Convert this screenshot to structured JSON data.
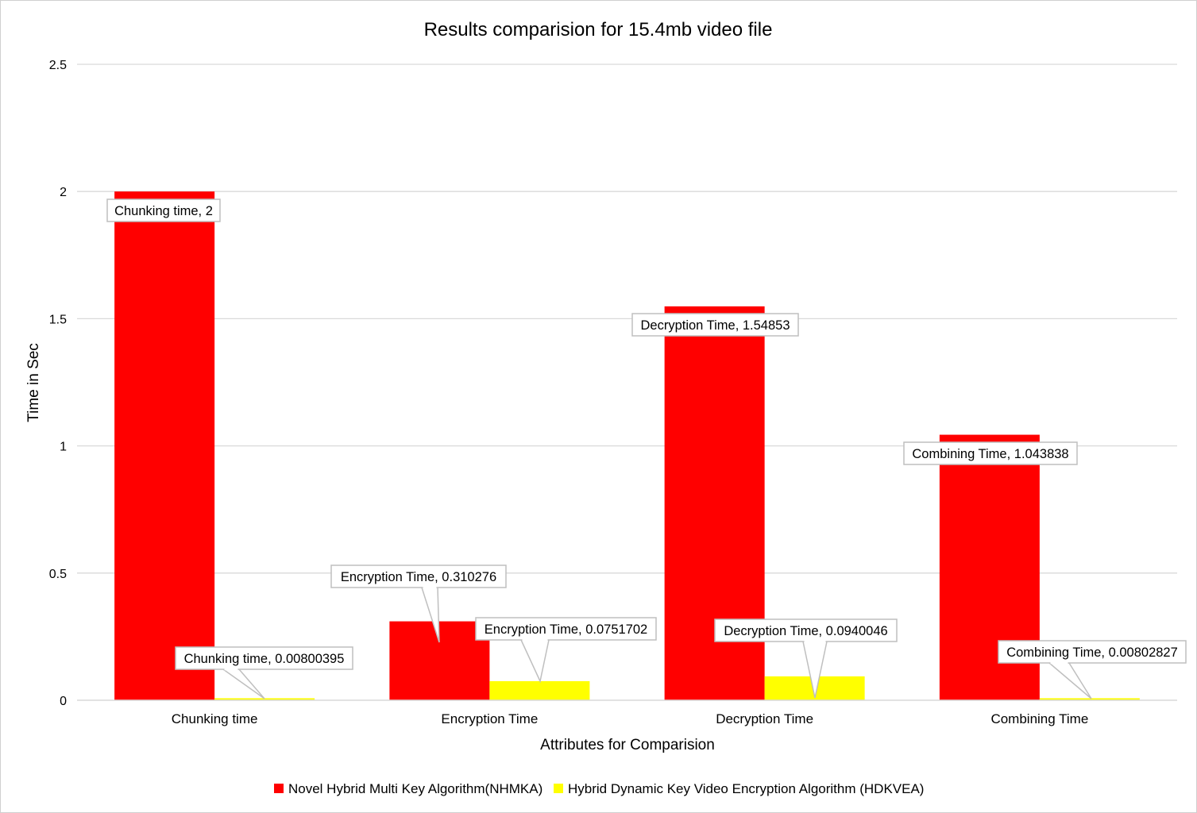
{
  "chart_data": {
    "type": "bar",
    "title": "Results comparision for 15.4mb video file",
    "xlabel": "Attributes for Comparision",
    "ylabel": "Time in Sec",
    "ylim": [
      0,
      2.5
    ],
    "yticks": [
      0,
      0.5,
      1,
      1.5,
      2,
      2.5
    ],
    "ytick_labels": [
      "0",
      "0.5",
      "1",
      "1.5",
      "2",
      "2.5"
    ],
    "grid": true,
    "legend_position": "bottom",
    "categories": [
      "Chunking time",
      "Encryption Time",
      "Decryption Time",
      "Combining Time"
    ],
    "series": [
      {
        "name": "Novel Hybrid Multi Key Algorithm(NHMKA)",
        "color": "#ff0000",
        "values": [
          2,
          0.310276,
          1.54853,
          1.043838
        ],
        "labels": [
          "Chunking time, 2",
          "Encryption Time, 0.310276",
          "Decryption Time, 1.54853",
          "Combining Time, 1.043838"
        ]
      },
      {
        "name": "Hybrid Dynamic Key Video Encryption Algorithm (HDKVEA)",
        "color": "#ffff00",
        "values": [
          0.00800395,
          0.0751702,
          0.0940046,
          0.00802827
        ],
        "labels": [
          "Chunking time, 0.00800395",
          "Encryption Time, 0.0751702",
          "Decryption Time, 0.0940046",
          "Combining Time, 0.00802827"
        ]
      }
    ]
  }
}
